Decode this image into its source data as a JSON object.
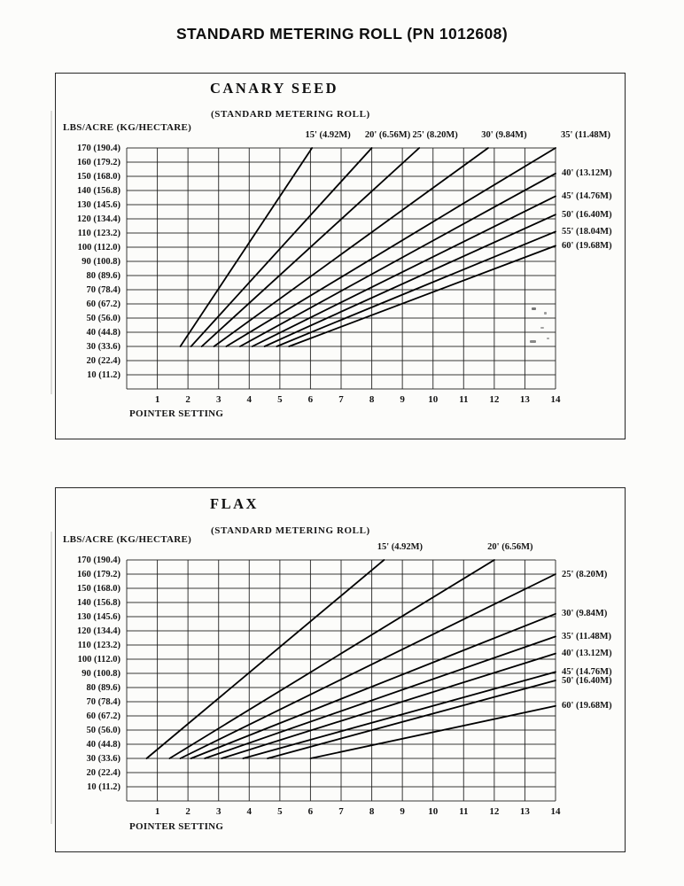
{
  "page": {
    "title": "STANDARD METERING ROLL (PN 1012608)"
  },
  "chart_data": [
    {
      "type": "line",
      "title": "CANARY SEED",
      "subtitle": "(STANDARD METERING ROLL)",
      "ylabel": "LBS/ACRE (KG/HECTARE)",
      "xlabel": "POINTER SETTING",
      "xlim": [
        0,
        14
      ],
      "ylim": [
        0,
        170
      ],
      "grid": true,
      "x_ticks": [
        1,
        2,
        3,
        4,
        5,
        6,
        7,
        8,
        9,
        10,
        11,
        12,
        13,
        14
      ],
      "y_ticks": [
        "170 (190.4)",
        "160 (179.2)",
        "150 (168.0)",
        "140 (156.8)",
        "130 (145.6)",
        "120 (134.4)",
        "110 (123.2)",
        "100 (112.0)",
        "90 (100.8)",
        "80 (89.6)",
        "70 (78.4)",
        "60 (67.2)",
        "50 (56.0)",
        "40 (44.8)",
        "30 (33.6)",
        "20 (22.4)",
        "10 (11.2)"
      ],
      "series": [
        {
          "name": "15' (4.92M)",
          "label_side": "top",
          "points": [
            [
              1.75,
              30
            ],
            [
              6.05,
              170
            ]
          ]
        },
        {
          "name": "20' (6.56M)",
          "label_side": "top",
          "points": [
            [
              2.1,
              30
            ],
            [
              8.0,
              170
            ]
          ]
        },
        {
          "name": "25' (8.20M)",
          "label_side": "top",
          "points": [
            [
              2.45,
              30
            ],
            [
              9.55,
              170
            ]
          ]
        },
        {
          "name": "30' (9.84M)",
          "label_side": "top",
          "points": [
            [
              2.85,
              30
            ],
            [
              11.8,
              170
            ]
          ]
        },
        {
          "name": "35' (11.48M)",
          "label_side": "top-right",
          "points": [
            [
              3.25,
              30
            ],
            [
              14,
              170
            ]
          ]
        },
        {
          "name": "40' (13.12M)",
          "label_side": "right",
          "points": [
            [
              3.7,
              30
            ],
            [
              14,
              152
            ]
          ]
        },
        {
          "name": "45' (14.76M)",
          "label_side": "right",
          "points": [
            [
              4.1,
              30
            ],
            [
              14,
              136
            ]
          ]
        },
        {
          "name": "50' (16.40M)",
          "label_side": "right",
          "points": [
            [
              4.5,
              30
            ],
            [
              14,
              123
            ]
          ]
        },
        {
          "name": "55' (18.04M)",
          "label_side": "right",
          "points": [
            [
              4.9,
              30
            ],
            [
              14,
              111
            ]
          ]
        },
        {
          "name": "60' (19.68M)",
          "label_side": "right",
          "points": [
            [
              5.3,
              30
            ],
            [
              14,
              101
            ]
          ]
        }
      ]
    },
    {
      "type": "line",
      "title": "FLAX",
      "subtitle": "(STANDARD METERING ROLL)",
      "ylabel": "LBS/ACRE (KG/HECTARE)",
      "xlabel": "POINTER SETTING",
      "xlim": [
        0,
        14
      ],
      "ylim": [
        0,
        170
      ],
      "grid": true,
      "x_ticks": [
        1,
        2,
        3,
        4,
        5,
        6,
        7,
        8,
        9,
        10,
        11,
        12,
        13,
        14
      ],
      "y_ticks": [
        "170 (190.4)",
        "160 (179.2)",
        "150 (168.0)",
        "140 (156.8)",
        "130 (145.6)",
        "120 (134.4)",
        "110 (123.2)",
        "100 (112.0)",
        "90 (100.8)",
        "80 (89.6)",
        "70 (78.4)",
        "60 (67.2)",
        "50 (56.0)",
        "40 (44.8)",
        "30 (33.6)",
        "20 (22.4)",
        "10 (11.2)"
      ],
      "series": [
        {
          "name": "15' (4.92M)",
          "label_side": "top",
          "points": [
            [
              0.65,
              30
            ],
            [
              8.4,
              170
            ]
          ]
        },
        {
          "name": "20' (6.56M)",
          "label_side": "top",
          "points": [
            [
              1.4,
              30
            ],
            [
              12.0,
              170
            ]
          ]
        },
        {
          "name": "25' (8.20M)",
          "label_side": "right",
          "points": [
            [
              1.75,
              30
            ],
            [
              14,
              160
            ]
          ]
        },
        {
          "name": "30' (9.84M)",
          "label_side": "right",
          "points": [
            [
              2.1,
              30
            ],
            [
              14,
              132
            ]
          ]
        },
        {
          "name": "35' (11.48M)",
          "label_side": "right",
          "points": [
            [
              2.55,
              30
            ],
            [
              14,
              116
            ]
          ]
        },
        {
          "name": "40' (13.12M)",
          "label_side": "right",
          "points": [
            [
              3.1,
              30
            ],
            [
              14,
              104
            ]
          ]
        },
        {
          "name": "45' (14.76M)",
          "label_side": "right",
          "points": [
            [
              3.8,
              30
            ],
            [
              14,
              91
            ]
          ]
        },
        {
          "name": "50' (16.40M)",
          "label_side": "right",
          "points": [
            [
              4.6,
              30
            ],
            [
              14,
              85
            ]
          ]
        },
        {
          "name": "60' (19.68M)",
          "label_side": "right",
          "points": [
            [
              6.0,
              30
            ],
            [
              14,
              67
            ]
          ]
        }
      ]
    }
  ]
}
